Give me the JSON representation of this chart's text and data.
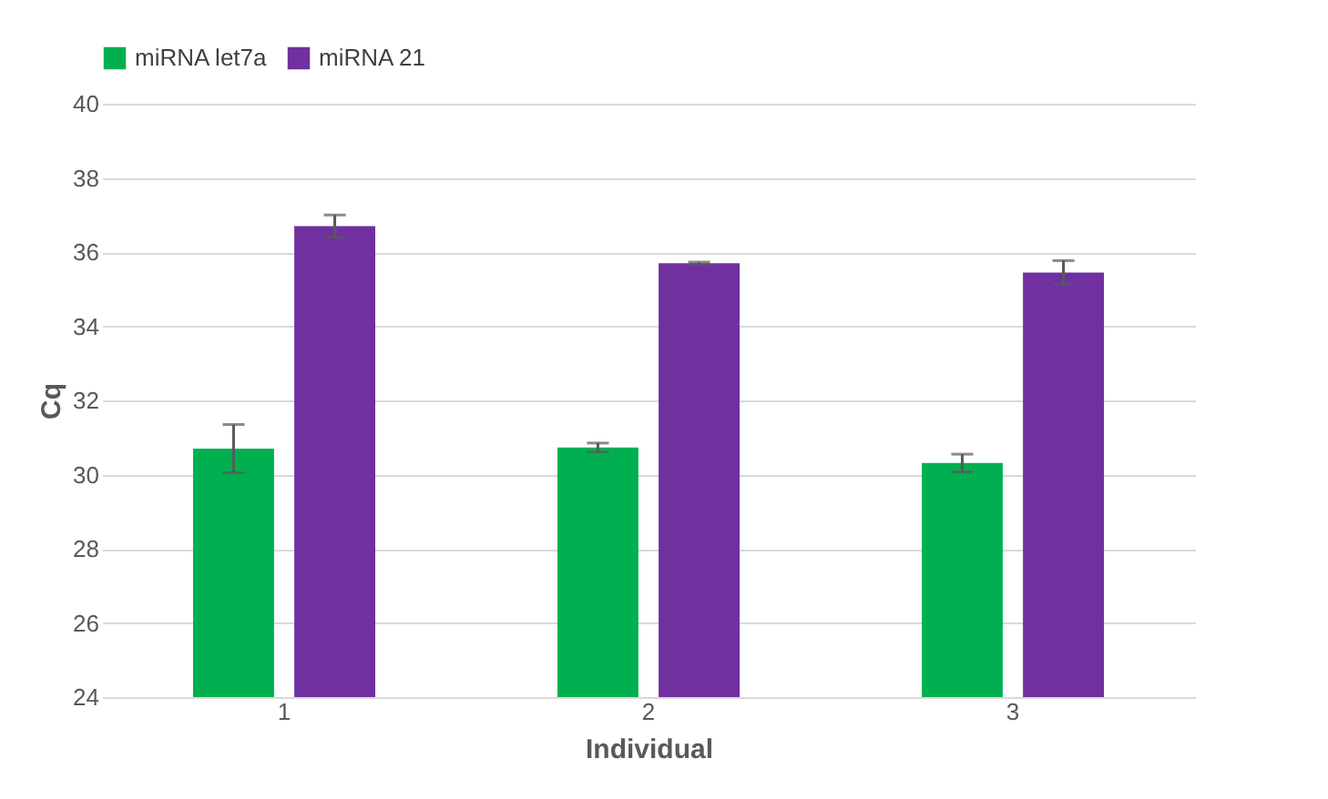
{
  "chart_data": {
    "type": "bar",
    "xlabel": "Individual",
    "ylabel": "Cq",
    "categories": [
      "1",
      "2",
      "3"
    ],
    "series": [
      {
        "name": "miRNA let7a",
        "color": "#00b050",
        "values": [
          30.7,
          30.73,
          30.31
        ],
        "errors": [
          0.65,
          0.12,
          0.24
        ]
      },
      {
        "name": "miRNA 21",
        "color": "#7030a0",
        "values": [
          36.7,
          35.7,
          35.45
        ],
        "errors": [
          0.3,
          0.03,
          0.32
        ]
      }
    ],
    "ylim": [
      24,
      40
    ],
    "yticks": [
      24,
      26,
      28,
      30,
      32,
      34,
      36,
      38,
      40
    ],
    "grid": "y",
    "legend": "top"
  }
}
